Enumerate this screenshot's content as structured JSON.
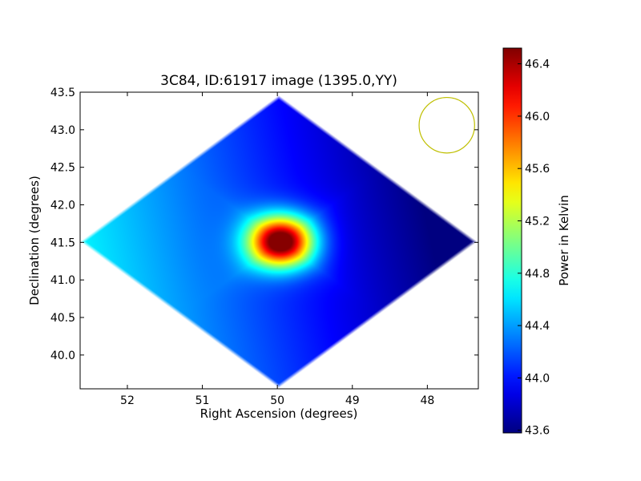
{
  "chart_data": {
    "type": "heatmap",
    "title": "3C84, ID:61917 image (1395.0,YY)",
    "xlabel": "Right Ascension (degrees)",
    "ylabel": "Declination (degrees)",
    "xlim": [
      52.63,
      47.32
    ],
    "ylim": [
      39.55,
      43.5
    ],
    "x_ticks": [
      52,
      51,
      50,
      49,
      48
    ],
    "y_ticks": [
      40.0,
      40.5,
      41.0,
      41.5,
      42.0,
      42.5,
      43.0,
      43.5
    ],
    "x_tick_labels": [
      "52",
      "51",
      "50",
      "49",
      "48"
    ],
    "y_tick_labels": [
      "40.0",
      "40.5",
      "41.0",
      "41.5",
      "42.0",
      "42.5",
      "43.0",
      "43.5"
    ],
    "source_peak": {
      "ra": 49.95,
      "dec": 41.51,
      "value": 46.5
    },
    "beam_circle": {
      "ra": 47.74,
      "dec": 43.06,
      "radius_deg": 0.37,
      "color": "#bfbf00"
    },
    "footprint": {
      "center_ra": 49.98,
      "center_dec": 41.51,
      "half_width_ra": 2.65,
      "half_height_dec": 1.95
    },
    "colormap": "jet",
    "colorbar": {
      "label": "Power in Kelvin",
      "min": 43.58,
      "max": 46.52,
      "ticks": [
        43.6,
        44.0,
        44.4,
        44.8,
        45.2,
        45.6,
        46.0,
        46.4
      ],
      "tick_labels": [
        "43.6",
        "44.0",
        "44.4",
        "44.8",
        "45.2",
        "45.6",
        "46.0",
        "46.4"
      ]
    }
  }
}
